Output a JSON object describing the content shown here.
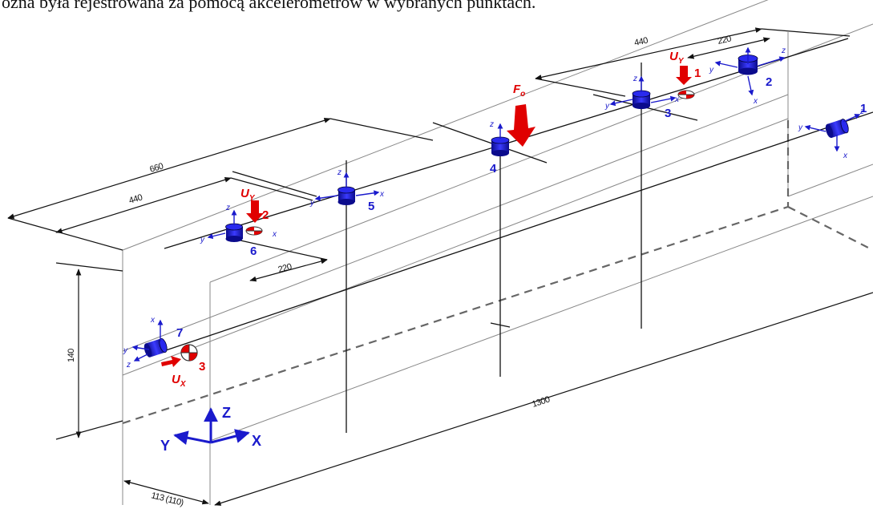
{
  "header": {
    "text": "ożna była rejestrowana za pomocą akcelerometrów w wybranych punktach."
  },
  "dimensions": {
    "d660": "660",
    "d440_left": "440",
    "d220_left": "220",
    "d440_right": "440",
    "d220_right": "220",
    "d140": "140",
    "d1300": "1300",
    "d113": "113 (110)"
  },
  "sensor_labels": [
    "1",
    "2",
    "3",
    "4",
    "5",
    "6",
    "7"
  ],
  "exciter_labels": [
    "1",
    "2",
    "3"
  ],
  "force_labels": {
    "uy": "U",
    "uy_sub": "Y",
    "ux": "U",
    "ux_sub": "X",
    "fo": "F",
    "fo_sub": "o"
  },
  "local_axes": {
    "x": "x",
    "y": "y",
    "z": "z"
  },
  "global_axes": {
    "x": "X",
    "y": "Y",
    "z": "Z"
  },
  "colors": {
    "sensor": "#1a1acc",
    "force": "#e00000",
    "line": "#111111"
  }
}
